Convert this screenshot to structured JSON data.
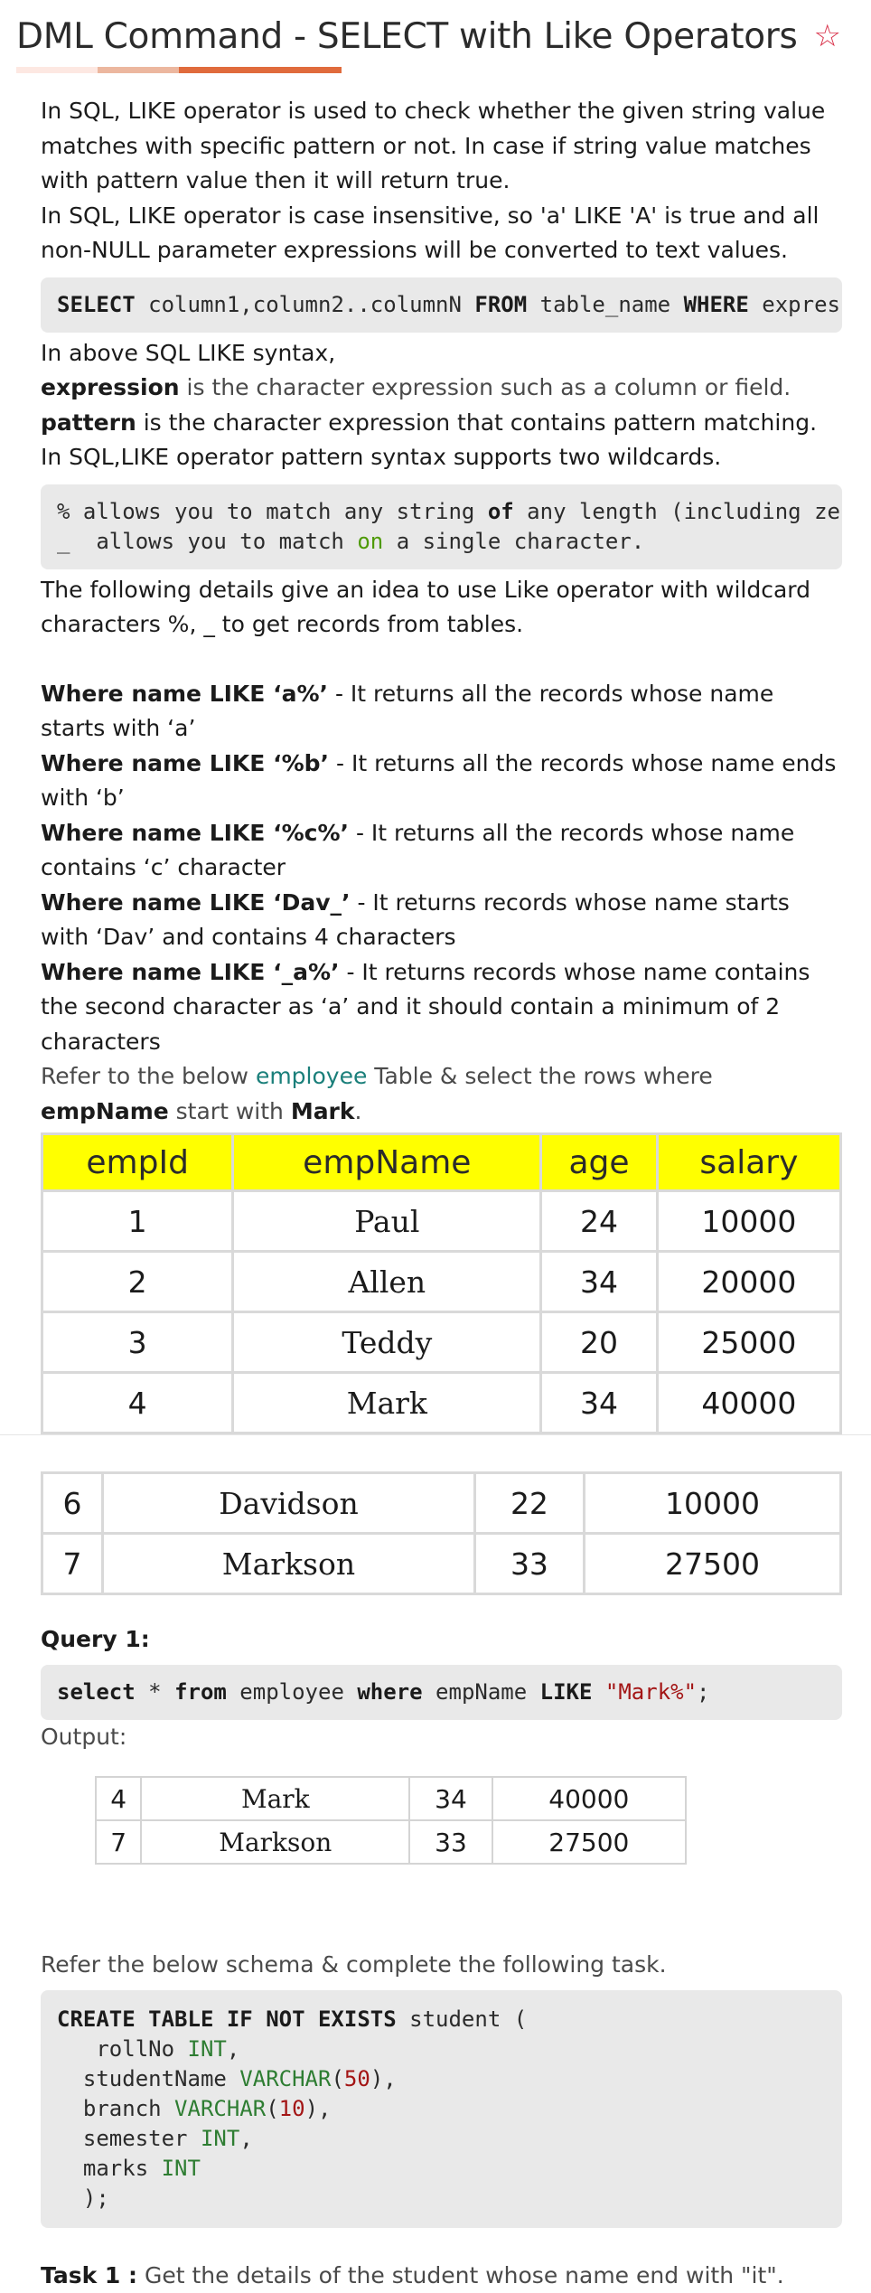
{
  "page": {
    "title": "DML Command - SELECT with Like Operators",
    "star_icon": "star-outline-icon",
    "accent_colors": [
      "#fde8e2",
      "#ecb79f",
      "#e06b3c",
      "#d9324a"
    ]
  },
  "intro": {
    "p1": "In SQL, LIKE operator is used to check whether the given string value matches with specific pattern or not. In case if string value matches with pattern value then it will return true.",
    "p2": "In SQL, LIKE operator is case insensitive, so 'a' LIKE 'A' is true and all non-NULL parameter expressions will be converted to text values."
  },
  "syntax_code": {
    "kw1": "SELECT",
    "t1": " column1,column2..columnN ",
    "kw2": "FROM",
    "t2": " table_name ",
    "kw3": "WHERE",
    "t3": " expression LIKE pattern;"
  },
  "explain": {
    "line1": "In above SQL LIKE syntax,",
    "expr_term": "expression",
    "expr_desc": " is the character expression such as a column or field.",
    "pattern_term": "pattern",
    "pattern_desc": " is the character expression that contains pattern matching.",
    "wildcards_line": "In SQL,LIKE operator pattern syntax supports two wildcards."
  },
  "wildcard_code": {
    "l1a": "% allows you to match any string ",
    "l1kw": "of",
    "l1b": " any length (including zero length).",
    "l2a": "_  allows you to match ",
    "l2on": "on",
    "l2b": " a single character."
  },
  "details": {
    "text": "The following details give an idea to use Like operator with wildcard characters %, _ to get records from tables."
  },
  "examples": [
    {
      "bold": "Where name LIKE ‘a%’",
      "desc": " - It returns all the records whose name starts with ‘a’"
    },
    {
      "bold": "Where name LIKE ‘%b’",
      "desc": " - It returns all the records whose name ends with ‘b’"
    },
    {
      "bold": "Where name LIKE ‘%c%’",
      "desc": " - It returns all the records whose name contains ‘c’ character"
    },
    {
      "bold": "Where name LIKE ‘Dav_’",
      "desc": " - It returns records whose name starts with ‘Dav’ and contains 4 characters"
    },
    {
      "bold": "Where name LIKE ‘_a%’",
      "desc": " - It returns records whose name contains the second character as ‘a’ and it should contain a minimum of 2 characters"
    }
  ],
  "refer": {
    "t1": "Refer to the below ",
    "link": "employee",
    "t2": " Table & select the rows where ",
    "b1": "empName",
    "t3": " start with ",
    "b2": "Mark",
    "t4": "."
  },
  "employee_table": {
    "headers": [
      "empId",
      "empName",
      "age",
      "salary"
    ],
    "rows": [
      [
        "1",
        "Paul",
        "24",
        "10000"
      ],
      [
        "2",
        "Allen",
        "34",
        "20000"
      ],
      [
        "3",
        "Teddy",
        "20",
        "25000"
      ],
      [
        "4",
        "Mark",
        "34",
        "40000"
      ],
      [
        "6",
        "Davidson",
        "22",
        "10000"
      ],
      [
        "7",
        "Markson",
        "33",
        "27500"
      ]
    ]
  },
  "query": {
    "label": "Query 1:",
    "kw1": "select",
    "t1": " * ",
    "kw2": "from",
    "t2": " employee ",
    "kw3": "where",
    "t3": " empName ",
    "kw4": "LIKE",
    "str": " \"Mark%\"",
    "end": ";",
    "output_label": "Output:"
  },
  "output_table": {
    "rows": [
      [
        "4",
        "Mark",
        "34",
        "40000"
      ],
      [
        "7",
        "Markson",
        "33",
        "27500"
      ]
    ]
  },
  "schema": {
    "intro": "Refer the below schema & complete the following task.",
    "l1kw": "CREATE TABLE IF NOT EXISTS",
    "l1t": " student (",
    "l2": "   rollNo ",
    "l2type": "INT",
    "l2end": ",",
    "l3": "  studentName ",
    "l3type": "VARCHAR",
    "l3num": "50",
    "l3end": "),",
    "l4": "  branch ",
    "l4type": "VARCHAR",
    "l4num": "10",
    "l4end": "),",
    "l5": "  semester ",
    "l5type": "INT",
    "l5end": ",",
    "l6": "  marks ",
    "l6type": "INT",
    "l7": "  );"
  },
  "task": {
    "label": "Task 1 :",
    "text": " Get the details of the student whose name end with \"it\"."
  }
}
